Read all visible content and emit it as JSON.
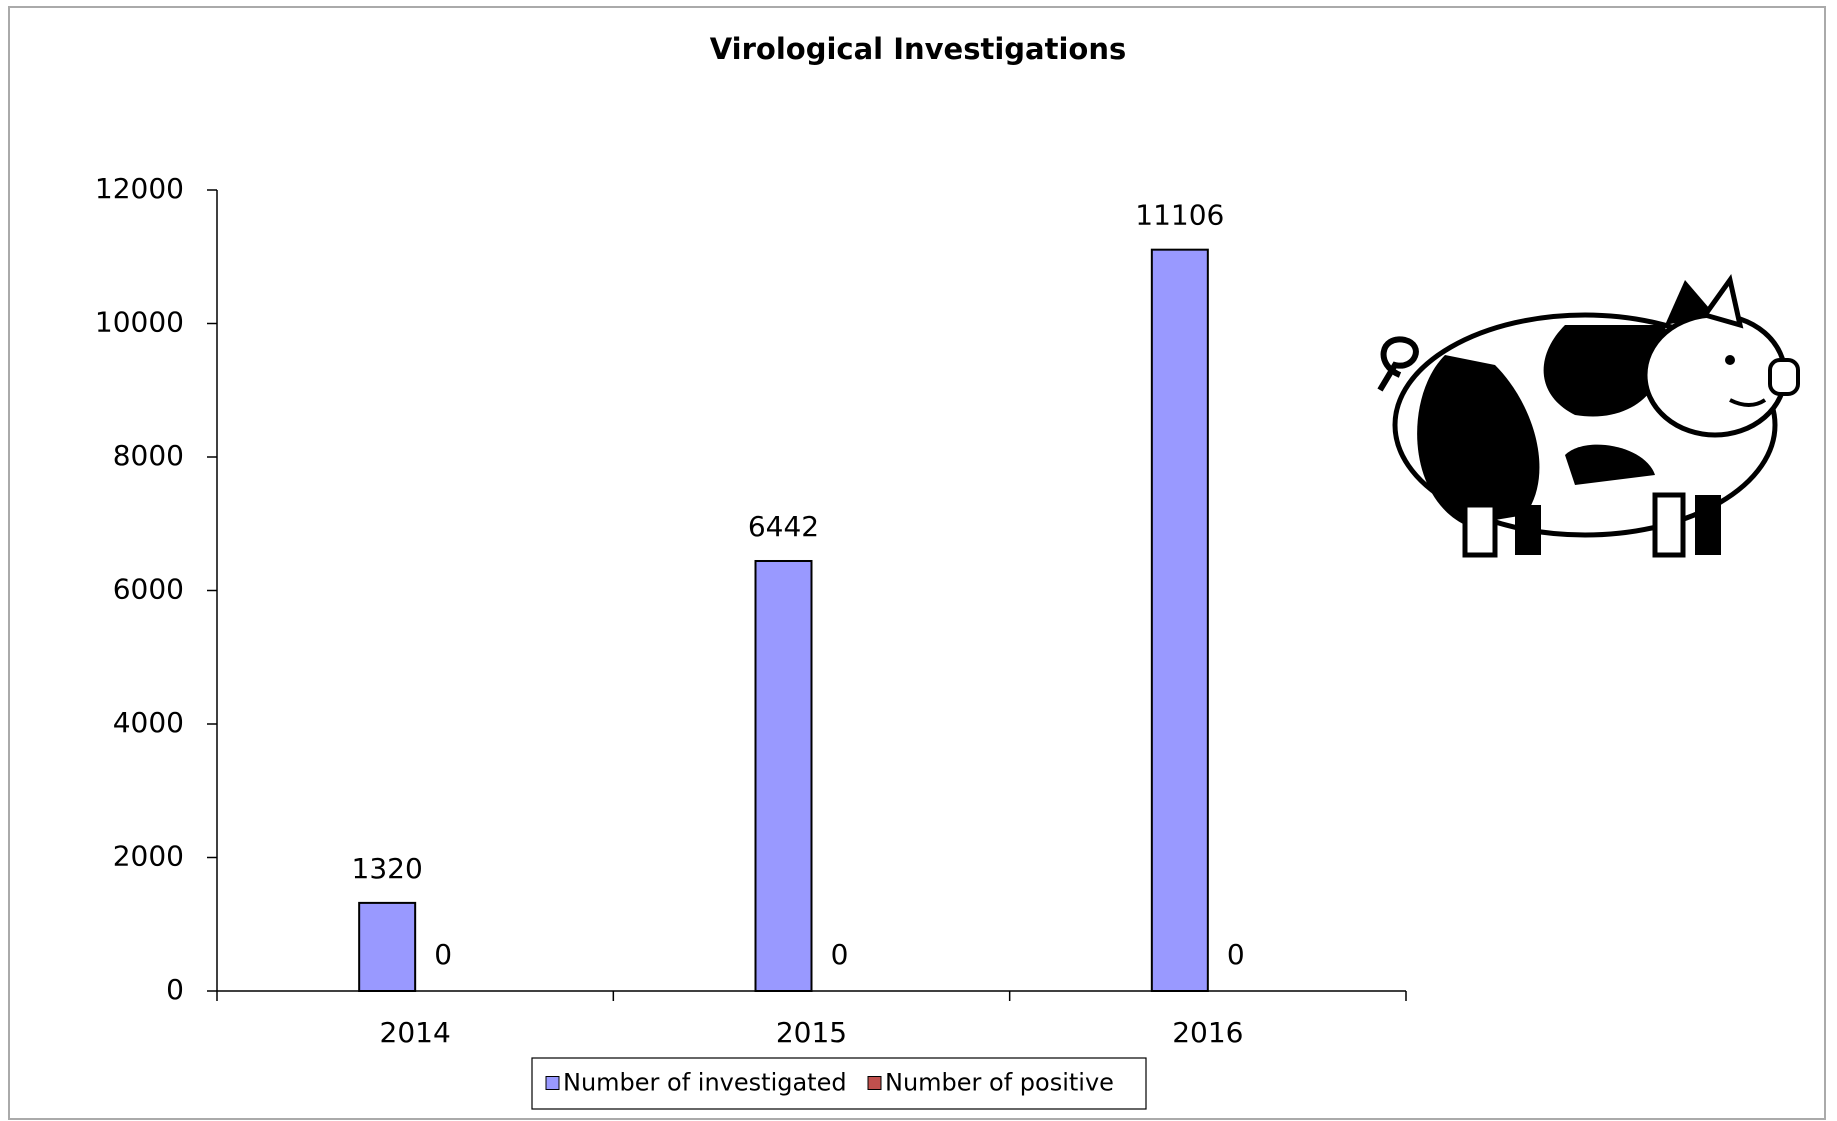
{
  "chart_data": {
    "type": "bar",
    "title": "Virological Investigations",
    "categories": [
      "2014",
      "2015",
      "2016"
    ],
    "series": [
      {
        "name": "Number of investigated",
        "color": "#9999ff",
        "values": [
          1320,
          6442,
          11106
        ]
      },
      {
        "name": "Number of positive",
        "color": "#c0504d",
        "values": [
          0,
          0,
          0
        ]
      }
    ],
    "ylim": [
      0,
      12000
    ],
    "yticks": [
      0,
      2000,
      4000,
      6000,
      8000,
      10000,
      12000
    ],
    "grid": false
  }
}
